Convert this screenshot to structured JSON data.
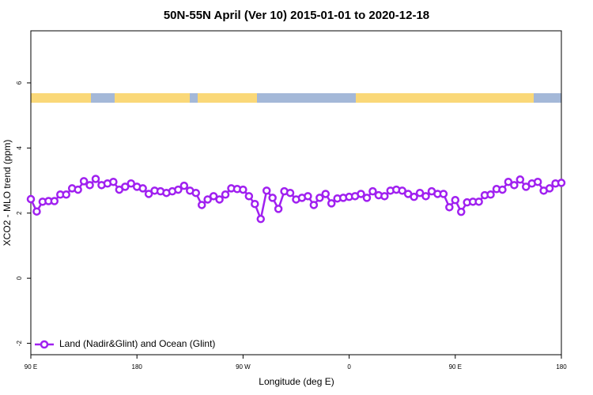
{
  "chart_data": {
    "type": "line",
    "title": "50N-55N April (Ver 10)   2015-01-01 to 2020-12-18",
    "x_label": "Longitude (deg E)",
    "y_label": "XCO2 - MLO trend (ppm)",
    "xlim": [
      90,
      540
    ],
    "ylim": [
      -2.35,
      7.6
    ],
    "xticks": [
      {
        "value": 90,
        "label": "90 E"
      },
      180,
      {
        "value": 270,
        "label": "90 W"
      },
      {
        "value": 360,
        "label": "0"
      },
      {
        "value": 450,
        "label": "90 E"
      },
      {
        "value": 540,
        "label": "180"
      }
    ],
    "yticks": [
      -2,
      0,
      2,
      4,
      6
    ],
    "legend": "bottom-left",
    "x": [
      90,
      95,
      100,
      105,
      110,
      115,
      120,
      125,
      130,
      135,
      140,
      145,
      150,
      155,
      160,
      165,
      170,
      175,
      180,
      185,
      190,
      195,
      200,
      205,
      210,
      215,
      220,
      225,
      230,
      235,
      240,
      245,
      250,
      255,
      260,
      265,
      270,
      275,
      280,
      285,
      290,
      295,
      300,
      305,
      310,
      315,
      320,
      325,
      330,
      335,
      340,
      345,
      350,
      355,
      360,
      365,
      370,
      375,
      380,
      385,
      390,
      395,
      400,
      405,
      410,
      415,
      420,
      425,
      430,
      435,
      440,
      445,
      450,
      455,
      460,
      465,
      470,
      475,
      480,
      485,
      490,
      495,
      500,
      505,
      510,
      515,
      520,
      525,
      530,
      535,
      540
    ],
    "series": [
      {
        "name": "Land (Nadir&Glint) and Ocean (Glint)",
        "color": "#a020f0",
        "values": [
          2.43,
          2.05,
          2.35,
          2.37,
          2.37,
          2.57,
          2.57,
          2.76,
          2.72,
          2.98,
          2.86,
          3.05,
          2.86,
          2.91,
          2.96,
          2.72,
          2.81,
          2.91,
          2.81,
          2.76,
          2.59,
          2.69,
          2.67,
          2.62,
          2.67,
          2.72,
          2.84,
          2.69,
          2.62,
          2.25,
          2.42,
          2.52,
          2.42,
          2.57,
          2.76,
          2.74,
          2.72,
          2.52,
          2.28,
          1.82,
          2.69,
          2.47,
          2.13,
          2.67,
          2.62,
          2.42,
          2.47,
          2.52,
          2.25,
          2.47,
          2.59,
          2.3,
          2.45,
          2.47,
          2.5,
          2.52,
          2.59,
          2.47,
          2.67,
          2.55,
          2.52,
          2.69,
          2.72,
          2.69,
          2.59,
          2.5,
          2.62,
          2.52,
          2.67,
          2.59,
          2.59,
          2.18,
          2.4,
          2.04,
          2.33,
          2.35,
          2.35,
          2.55,
          2.57,
          2.74,
          2.72,
          2.96,
          2.86,
          3.03,
          2.81,
          2.91,
          2.96,
          2.69,
          2.76,
          2.91,
          2.93
        ]
      }
    ]
  }
}
